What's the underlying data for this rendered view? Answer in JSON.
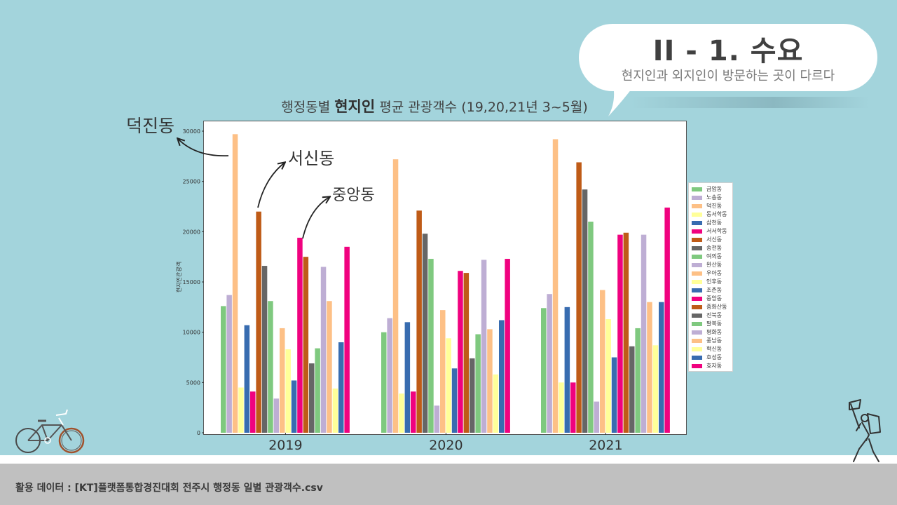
{
  "slide": {
    "title": "II - 1. 수요",
    "subtitle": "현지인과 외지인이 방문하는 곳이 다르다"
  },
  "chart_title": {
    "prefix": "행정동별 ",
    "bold": "현지인",
    "suffix": " 평균 관광객수 (19,20,21년 3~5월)"
  },
  "annotations": {
    "deokjin": "덕진동",
    "seosin": "서신동",
    "jungang": "중앙동"
  },
  "footer": {
    "source": "활용 데이터 : [KT]플랫폼통합경진대회 전주시 행정동 일별 관광객수.csv"
  },
  "chart_data": {
    "type": "bar",
    "title": "행정동별 현지인 평균 관광객수 (19,20,21년 3~5월)",
    "xlabel": "",
    "ylabel": "현지인관광객",
    "ylim": [
      0,
      30500
    ],
    "yticks": [
      0,
      5000,
      10000,
      15000,
      20000,
      25000,
      30000
    ],
    "categories": [
      "2019",
      "2020",
      "2021"
    ],
    "legend_position": "right",
    "series": [
      {
        "name": "금암동",
        "color": "#7fc97f",
        "values": [
          12600,
          10000,
          12400
        ]
      },
      {
        "name": "노송동",
        "color": "#beaed4",
        "values": [
          13700,
          11400,
          13800
        ]
      },
      {
        "name": "덕진동",
        "color": "#fdc086",
        "values": [
          29700,
          27200,
          29200
        ]
      },
      {
        "name": "동서학동",
        "color": "#ffff99",
        "values": [
          4500,
          3900,
          5000
        ]
      },
      {
        "name": "삼천동",
        "color": "#386cb0",
        "values": [
          10700,
          11000,
          12500
        ]
      },
      {
        "name": "서서학동",
        "color": "#f0027f",
        "values": [
          4100,
          4100,
          5000
        ]
      },
      {
        "name": "서신동",
        "color": "#bf5b17",
        "values": [
          22000,
          22100,
          26900
        ]
      },
      {
        "name": "송천동",
        "color": "#666666",
        "values": [
          16600,
          19800,
          24200
        ]
      },
      {
        "name": "여의동",
        "color": "#7fc97f",
        "values": [
          13100,
          17300,
          21000
        ]
      },
      {
        "name": "완산동",
        "color": "#beaed4",
        "values": [
          3400,
          2700,
          3100
        ]
      },
      {
        "name": "우아동",
        "color": "#fdc086",
        "values": [
          10400,
          12200,
          14200
        ]
      },
      {
        "name": "인후동",
        "color": "#ffff99",
        "values": [
          8300,
          9400,
          11300
        ]
      },
      {
        "name": "조촌동",
        "color": "#386cb0",
        "values": [
          5200,
          6400,
          7500
        ]
      },
      {
        "name": "중앙동",
        "color": "#f0027f",
        "values": [
          19400,
          16100,
          19700
        ]
      },
      {
        "name": "중화산동",
        "color": "#bf5b17",
        "values": [
          17500,
          15900,
          19900
        ]
      },
      {
        "name": "진북동",
        "color": "#666666",
        "values": [
          6900,
          7400,
          8600
        ]
      },
      {
        "name": "팔복동",
        "color": "#7fc97f",
        "values": [
          8400,
          9800,
          10400
        ]
      },
      {
        "name": "평화동",
        "color": "#beaed4",
        "values": [
          16500,
          17200,
          19700
        ]
      },
      {
        "name": "풍남동",
        "color": "#fdc086",
        "values": [
          13100,
          10300,
          13000
        ]
      },
      {
        "name": "혁신동",
        "color": "#ffff99",
        "values": [
          4400,
          5800,
          8700
        ]
      },
      {
        "name": "호성동",
        "color": "#386cb0",
        "values": [
          9000,
          11200,
          13000
        ]
      },
      {
        "name": "효자동",
        "color": "#f0027f",
        "values": [
          18500,
          17300,
          22400
        ]
      }
    ]
  }
}
